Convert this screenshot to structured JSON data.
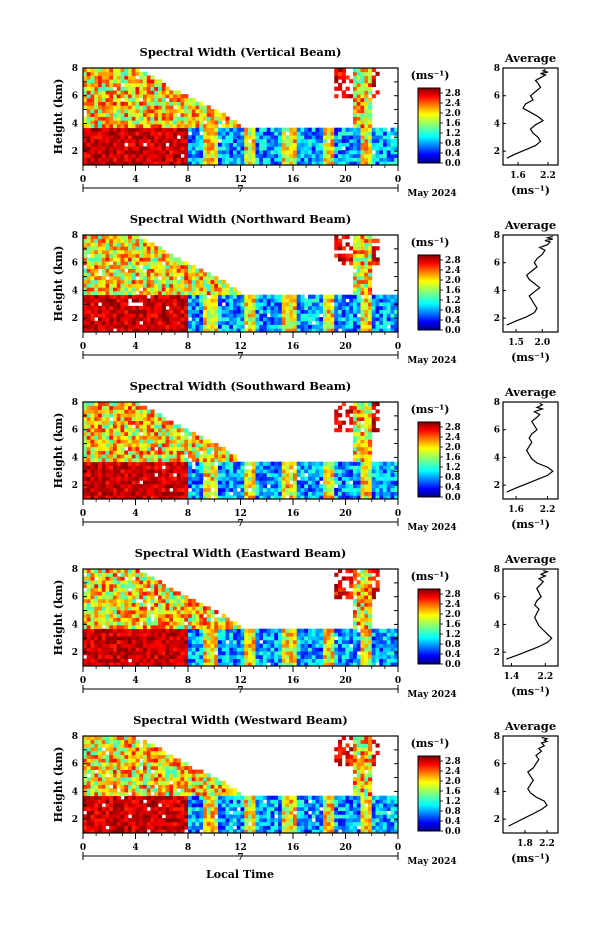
{
  "figure": {
    "xlabel_bottom": "Local Time",
    "date_label": "May 2024",
    "day_label": "7",
    "colorbar_unit": "(ms⁻¹)",
    "avg_xlabel": "(ms⁻¹)"
  },
  "chart_data": [
    {
      "type": "heatmap",
      "title": "Spectral Width (Vertical Beam)",
      "ylabel": "Height (km)",
      "xlabel": "Local Time",
      "xticks": [
        "0",
        "4",
        "8",
        "12",
        "16",
        "20",
        "0"
      ],
      "yticks": [
        "2",
        "4",
        "6",
        "8"
      ],
      "xlim": [
        0,
        24
      ],
      "ylim": [
        1,
        8
      ],
      "colorbar": {
        "ticks": [
          "0.0",
          "0.4",
          "0.8",
          "1.2",
          "1.6",
          "2.0",
          "2.4",
          "2.8"
        ],
        "range": [
          0,
          3.0
        ]
      },
      "average": {
        "title": "Average",
        "xticks": [
          "1.6",
          "2.2"
        ],
        "xlim": [
          1.3,
          2.4
        ],
        "yticks": [
          "2",
          "4",
          "6",
          "8"
        ],
        "x": [
          1.38,
          1.55,
          1.75,
          1.95,
          2.05,
          2.0,
          1.9,
          1.85,
          1.95,
          2.1,
          2.0,
          1.85,
          1.7,
          1.75,
          1.9,
          1.85,
          1.95,
          2.05,
          2.0,
          1.95,
          2.05,
          2.15,
          2.05,
          2.2,
          2.1,
          2.15
        ],
        "y": [
          1.5,
          1.8,
          2.1,
          2.4,
          2.7,
          3.0,
          3.3,
          3.6,
          3.9,
          4.2,
          4.5,
          4.8,
          5.1,
          5.4,
          5.7,
          6.0,
          6.3,
          6.6,
          6.9,
          7.1,
          7.3,
          7.5,
          7.6,
          7.7,
          7.8,
          7.9
        ]
      }
    },
    {
      "type": "heatmap",
      "title": "Spectral Width (Northward Beam)",
      "ylabel": "Height (km)",
      "xlabel": "Local Time",
      "xticks": [
        "0",
        "4",
        "8",
        "12",
        "16",
        "20",
        "0"
      ],
      "yticks": [
        "2",
        "4",
        "6",
        "8"
      ],
      "xlim": [
        0,
        24
      ],
      "ylim": [
        1,
        8
      ],
      "colorbar": {
        "ticks": [
          "0.0",
          "0.4",
          "0.8",
          "1.2",
          "1.6",
          "2.0",
          "2.4",
          "2.8"
        ],
        "range": [
          0,
          3.0
        ]
      },
      "average": {
        "title": "Average",
        "xticks": [
          "1.5",
          "2.0"
        ],
        "xlim": [
          1.25,
          2.3
        ],
        "yticks": [
          "2",
          "4",
          "6",
          "8"
        ],
        "x": [
          1.32,
          1.5,
          1.7,
          1.85,
          1.9,
          1.85,
          1.8,
          1.75,
          1.85,
          1.95,
          1.85,
          1.75,
          1.7,
          1.8,
          1.9,
          1.85,
          1.9,
          2.0,
          2.05,
          1.95,
          2.1,
          2.15,
          2.05,
          2.2,
          2.1,
          2.2
        ],
        "y": [
          1.5,
          1.8,
          2.1,
          2.4,
          2.7,
          3.0,
          3.3,
          3.6,
          3.9,
          4.2,
          4.5,
          4.8,
          5.1,
          5.4,
          5.7,
          6.0,
          6.3,
          6.6,
          6.9,
          7.1,
          7.3,
          7.5,
          7.6,
          7.7,
          7.8,
          7.9
        ]
      }
    },
    {
      "type": "heatmap",
      "title": "Spectral Width (Southward Beam)",
      "ylabel": "Height (km)",
      "xlabel": "Local Time",
      "xticks": [
        "0",
        "4",
        "8",
        "12",
        "16",
        "20",
        "0"
      ],
      "yticks": [
        "2",
        "4",
        "6",
        "8"
      ],
      "xlim": [
        0,
        24
      ],
      "ylim": [
        1,
        8
      ],
      "colorbar": {
        "ticks": [
          "0.0",
          "0.4",
          "0.8",
          "1.2",
          "1.6",
          "2.0",
          "2.4",
          "2.8"
        ],
        "range": [
          0,
          3.0
        ]
      },
      "average": {
        "title": "Average",
        "xticks": [
          "1.6",
          "2.2"
        ],
        "xlim": [
          1.35,
          2.4
        ],
        "yticks": [
          "2",
          "4",
          "6",
          "8"
        ],
        "x": [
          1.42,
          1.6,
          1.8,
          2.0,
          2.2,
          2.3,
          2.2,
          2.0,
          1.9,
          1.85,
          1.8,
          1.85,
          1.9,
          1.85,
          1.9,
          2.0,
          1.95,
          1.9,
          2.0,
          2.05,
          1.95,
          2.1,
          2.0,
          2.05,
          2.1,
          2.05
        ],
        "y": [
          1.5,
          1.8,
          2.1,
          2.4,
          2.7,
          3.0,
          3.3,
          3.6,
          3.9,
          4.2,
          4.5,
          4.8,
          5.1,
          5.4,
          5.7,
          6.0,
          6.3,
          6.6,
          6.9,
          7.1,
          7.3,
          7.5,
          7.6,
          7.7,
          7.8,
          7.9
        ]
      }
    },
    {
      "type": "heatmap",
      "title": "Spectral Width (Eastward Beam)",
      "ylabel": "Height (km)",
      "xlabel": "Local Time",
      "xticks": [
        "0",
        "4",
        "8",
        "12",
        "16",
        "20",
        "0"
      ],
      "yticks": [
        "2",
        "4",
        "6",
        "8"
      ],
      "xlim": [
        0,
        24
      ],
      "ylim": [
        1,
        8
      ],
      "colorbar": {
        "ticks": [
          "0.0",
          "0.4",
          "0.8",
          "1.2",
          "1.6",
          "2.0",
          "2.4",
          "2.8"
        ],
        "range": [
          0,
          3.0
        ]
      },
      "average": {
        "title": "Average",
        "xticks": [
          "1.4",
          "2.2"
        ],
        "xlim": [
          1.2,
          2.5
        ],
        "yticks": [
          "2",
          "4",
          "6",
          "8"
        ],
        "x": [
          1.28,
          1.55,
          1.8,
          2.05,
          2.25,
          2.35,
          2.25,
          2.15,
          2.05,
          2.0,
          1.95,
          2.0,
          2.05,
          1.95,
          2.0,
          2.1,
          2.05,
          2.0,
          2.1,
          2.15,
          2.05,
          2.2,
          2.1,
          2.15,
          2.25,
          2.15
        ],
        "y": [
          1.5,
          1.8,
          2.1,
          2.4,
          2.7,
          3.0,
          3.3,
          3.6,
          3.9,
          4.2,
          4.5,
          4.8,
          5.1,
          5.4,
          5.7,
          6.0,
          6.3,
          6.6,
          6.9,
          7.1,
          7.3,
          7.5,
          7.6,
          7.7,
          7.8,
          7.9
        ]
      }
    },
    {
      "type": "heatmap",
      "title": "Spectral Width (Westward Beam)",
      "ylabel": "Height (km)",
      "xlabel": "Local Time",
      "xticks": [
        "0",
        "4",
        "8",
        "12",
        "16",
        "20",
        "0"
      ],
      "yticks": [
        "2",
        "4",
        "6",
        "8"
      ],
      "xlim": [
        0,
        24
      ],
      "ylim": [
        1,
        8
      ],
      "colorbar": {
        "ticks": [
          "0.0",
          "0.4",
          "0.8",
          "1.2",
          "1.6",
          "2.0",
          "2.4",
          "2.8"
        ],
        "range": [
          0,
          3.0
        ]
      },
      "average": {
        "title": "Average",
        "xticks": [
          "1.8",
          "2.2"
        ],
        "xlim": [
          1.4,
          2.4
        ],
        "yticks": [
          "2",
          "4",
          "6",
          "8"
        ],
        "x": [
          1.5,
          1.65,
          1.8,
          1.95,
          2.1,
          2.2,
          2.15,
          2.0,
          1.9,
          1.85,
          1.9,
          1.95,
          1.9,
          1.85,
          1.95,
          2.0,
          2.05,
          2.0,
          2.1,
          2.05,
          2.15,
          2.1,
          2.2,
          2.15,
          2.2,
          2.1
        ],
        "y": [
          1.5,
          1.8,
          2.1,
          2.4,
          2.7,
          3.0,
          3.3,
          3.6,
          3.9,
          4.2,
          4.5,
          4.8,
          5.1,
          5.4,
          5.7,
          6.0,
          6.3,
          6.6,
          6.9,
          7.1,
          7.3,
          7.5,
          7.6,
          7.7,
          7.8,
          7.9
        ]
      }
    }
  ]
}
